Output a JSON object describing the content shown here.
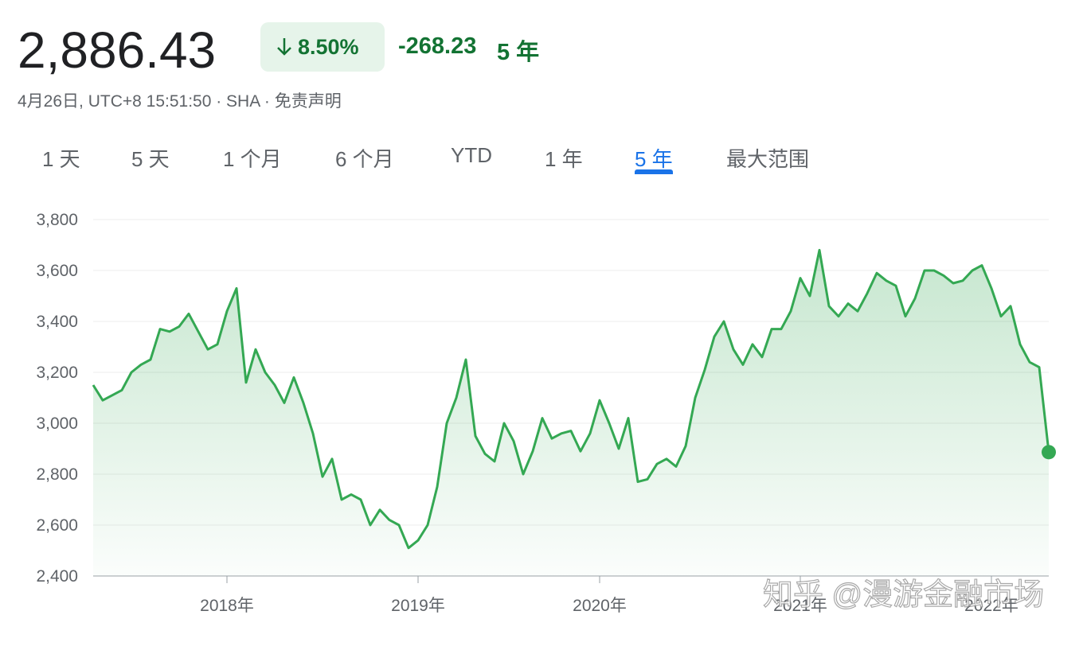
{
  "header": {
    "price": "2,886.43",
    "change_pct": "8.50%",
    "change": "-268.23",
    "period": "5 年",
    "meta": "4月26日, UTC+8 15:51:50 · SHA · 免责声明"
  },
  "tabs": {
    "items": [
      "1 天",
      "5 天",
      "1 个月",
      "6 个月",
      "YTD",
      "1 年",
      "5 年",
      "最大范围"
    ],
    "active": 6
  },
  "watermark": "知乎 @漫游金融市场",
  "chart_data": {
    "type": "line",
    "categories": [
      null,
      null,
      null,
      null,
      null,
      null,
      null,
      null,
      null,
      null,
      null,
      null,
      null,
      null,
      "2018年",
      null,
      null,
      null,
      null,
      null,
      null,
      null,
      null,
      null,
      null,
      null,
      null,
      null,
      null,
      null,
      null,
      null,
      null,
      null,
      "2019年",
      null,
      null,
      null,
      null,
      null,
      null,
      null,
      null,
      null,
      null,
      null,
      null,
      null,
      null,
      null,
      null,
      null,
      null,
      "2020年",
      null,
      null,
      null,
      null,
      null,
      null,
      null,
      null,
      null,
      null,
      null,
      null,
      null,
      null,
      null,
      null,
      null,
      null,
      null,
      null,
      "2021年",
      null,
      null,
      null,
      null,
      null,
      null,
      null,
      null,
      null,
      null,
      null,
      null,
      null,
      null,
      null,
      null,
      null,
      null,
      null,
      "2022年",
      null,
      null,
      null,
      null,
      null,
      null
    ],
    "series": [
      {
        "name": "SHA",
        "color": "#34a853",
        "values": [
          3150,
          3090,
          3110,
          3130,
          3200,
          3230,
          3250,
          3370,
          3360,
          3380,
          3430,
          3360,
          3290,
          3310,
          3440,
          3530,
          3160,
          3290,
          3200,
          3150,
          3080,
          3180,
          3080,
          2960,
          2790,
          2860,
          2700,
          2720,
          2700,
          2600,
          2660,
          2620,
          2600,
          2510,
          2540,
          2600,
          2750,
          3000,
          3100,
          3250,
          2950,
          2880,
          2850,
          3000,
          2930,
          2800,
          2890,
          3020,
          2940,
          2960,
          2970,
          2890,
          2960,
          3090,
          3000,
          2900,
          3020,
          2770,
          2780,
          2840,
          2860,
          2830,
          2910,
          3100,
          3210,
          3340,
          3400,
          3290,
          3230,
          3310,
          3260,
          3370,
          3370,
          3440,
          3570,
          3500,
          3680,
          3460,
          3420,
          3470,
          3440,
          3510,
          3590,
          3560,
          3540,
          3420,
          3490,
          3600,
          3600,
          3580,
          3550,
          3560,
          3600,
          3620,
          3530,
          3420,
          3460,
          3310,
          3240,
          3220,
          2886.43
        ]
      }
    ],
    "ylim": [
      2400,
      3800
    ],
    "yticks": [
      {
        "value": 2400,
        "label": "2,400"
      },
      {
        "value": 2600,
        "label": "2,600"
      },
      {
        "value": 2800,
        "label": "2,800"
      },
      {
        "value": 3000,
        "label": "3,000"
      },
      {
        "value": 3200,
        "label": "3,200"
      },
      {
        "value": 3400,
        "label": "3,400"
      },
      {
        "value": 3600,
        "label": "3,600"
      },
      {
        "value": 3800,
        "label": "3,800"
      }
    ],
    "grid": true
  }
}
